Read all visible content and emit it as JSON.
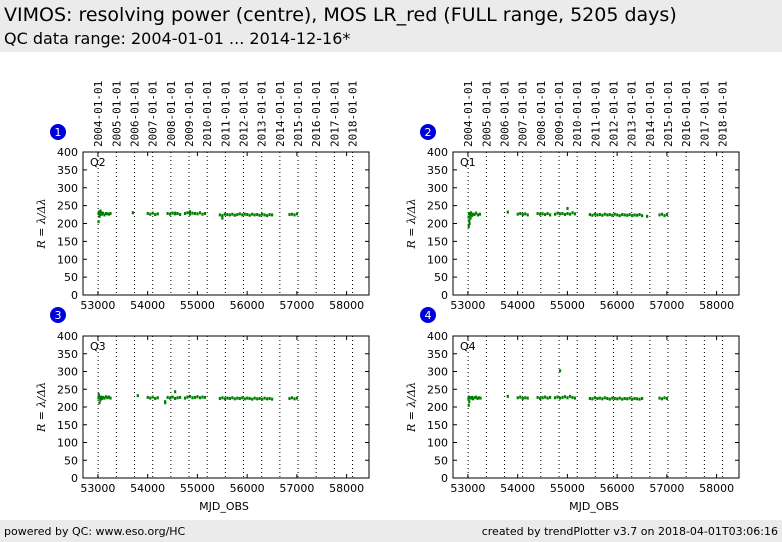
{
  "header": {
    "title": "VIMOS: resolving power (centre), MOS LR_red (FULL range, 5205 days)",
    "subtitle": "QC data range: 2004-01-01 ... 2014-12-16*"
  },
  "footer": {
    "left": "powered by QC: www.eso.org/HC",
    "right": "created by trendPlotter v3.7 on 2018-04-01T03:06:16"
  },
  "colors": {
    "data": "#008000",
    "badge": "#0000dd",
    "header_bg": "#ebebeb"
  },
  "chart_data": [
    {
      "type": "scatter",
      "panel_number": "1",
      "label": "Q2",
      "ylabel": "R = λ/Δλ",
      "xlabel": "",
      "xlim": [
        52700,
        58450
      ],
      "ylim": [
        0,
        400
      ],
      "xticks": [
        53000,
        54000,
        55000,
        56000,
        57000,
        58000
      ],
      "yticks": [
        0,
        50,
        100,
        150,
        200,
        250,
        300,
        350,
        400
      ],
      "date_ticks": [
        "2004-01-01",
        "2005-01-01",
        "2006-01-01",
        "2007-01-01",
        "2008-01-01",
        "2009-01-01",
        "2010-01-01",
        "2011-01-01",
        "2012-01-01",
        "2013-01-01",
        "2014-01-01",
        "2015-01-01",
        "2016-01-01",
        "2017-01-01",
        "2018-01-01"
      ],
      "date_mjd": [
        53005,
        53371,
        53736,
        54101,
        54466,
        54832,
        55197,
        55562,
        55927,
        56293,
        56658,
        57023,
        57388,
        57754,
        58119
      ],
      "series": [
        {
          "x": [
            53010,
            53020,
            53040,
            53060,
            53080,
            53100,
            53130,
            53160,
            53190,
            53220,
            53250,
            53030,
            53050,
            53010,
            53700,
            54000,
            54050,
            54100,
            54150,
            54200,
            54400,
            54450,
            54500,
            54550,
            54600,
            54650,
            54750,
            54800,
            54850,
            54900,
            54950,
            55000,
            55050,
            55100,
            55150,
            55450,
            55500,
            55550,
            55600,
            55650,
            55700,
            55750,
            55800,
            55850,
            55900,
            55950,
            56000,
            56050,
            56100,
            56150,
            56200,
            56250,
            56300,
            56350,
            56400,
            56450,
            56500,
            56850,
            56900,
            56950,
            57000,
            55500,
            54850,
            54550
          ],
          "y": [
            228,
            232,
            225,
            230,
            226,
            229,
            224,
            228,
            227,
            226,
            228,
            220,
            235,
            205,
            230,
            228,
            226,
            229,
            225,
            227,
            228,
            226,
            229,
            227,
            228,
            225,
            228,
            230,
            226,
            229,
            228,
            227,
            230,
            226,
            228,
            224,
            222,
            226,
            225,
            224,
            226,
            223,
            225,
            227,
            224,
            226,
            225,
            223,
            226,
            224,
            225,
            223,
            226,
            224,
            222,
            225,
            224,
            225,
            226,
            224,
            227,
            215,
            233,
            229
          ]
        }
      ]
    },
    {
      "type": "scatter",
      "panel_number": "2",
      "label": "Q1",
      "ylabel": "R = λ/Δλ",
      "xlabel": "",
      "xlim": [
        52700,
        58450
      ],
      "ylim": [
        0,
        400
      ],
      "xticks": [
        53000,
        54000,
        55000,
        56000,
        57000,
        58000
      ],
      "yticks": [
        0,
        50,
        100,
        150,
        200,
        250,
        300,
        350,
        400
      ],
      "date_ticks": [
        "2004-01-01",
        "2005-01-01",
        "2006-01-01",
        "2007-01-01",
        "2008-01-01",
        "2009-01-01",
        "2010-01-01",
        "2011-01-01",
        "2012-01-01",
        "2013-01-01",
        "2014-01-01",
        "2015-01-01",
        "2016-01-01",
        "2017-01-01",
        "2018-01-01"
      ],
      "date_mjd": [
        53005,
        53371,
        53736,
        54101,
        54466,
        54832,
        55197,
        55562,
        55927,
        56293,
        56658,
        57023,
        57388,
        57754,
        58119
      ],
      "series": [
        {
          "x": [
            53010,
            53020,
            53040,
            53060,
            53080,
            53100,
            53130,
            53160,
            53200,
            53240,
            53030,
            53050,
            53015,
            53025,
            53800,
            54000,
            54050,
            54100,
            54150,
            54200,
            54400,
            54450,
            54500,
            54550,
            54600,
            54650,
            54750,
            54800,
            54850,
            54900,
            54950,
            55000,
            55050,
            55100,
            55150,
            55450,
            55500,
            55550,
            55600,
            55650,
            55700,
            55750,
            55800,
            55850,
            55900,
            55950,
            56000,
            56050,
            56100,
            56150,
            56200,
            56250,
            56300,
            56350,
            56400,
            56450,
            56500,
            56600,
            56850,
            56900,
            56950,
            57000,
            55000
          ],
          "y": [
            218,
            228,
            224,
            230,
            222,
            226,
            225,
            229,
            224,
            226,
            200,
            215,
            192,
            208,
            232,
            226,
            228,
            225,
            227,
            224,
            228,
            226,
            227,
            225,
            228,
            224,
            226,
            229,
            227,
            228,
            225,
            228,
            226,
            230,
            227,
            225,
            223,
            226,
            224,
            225,
            223,
            226,
            224,
            225,
            223,
            226,
            224,
            222,
            225,
            224,
            223,
            225,
            222,
            224,
            223,
            225,
            222,
            220,
            224,
            226,
            222,
            225,
            242
          ]
        }
      ]
    },
    {
      "type": "scatter",
      "panel_number": "3",
      "label": "Q3",
      "ylabel": "R = λ/Δλ",
      "xlabel": "MJD_OBS",
      "xlim": [
        52700,
        58450
      ],
      "ylim": [
        0,
        400
      ],
      "xticks": [
        53000,
        54000,
        55000,
        56000,
        57000,
        58000
      ],
      "yticks": [
        0,
        50,
        100,
        150,
        200,
        250,
        300,
        350,
        400
      ],
      "date_ticks": [],
      "date_mjd": [
        53005,
        53371,
        53736,
        54101,
        54466,
        54832,
        55197,
        55562,
        55927,
        56293,
        56658,
        57023,
        57388,
        57754,
        58119
      ],
      "series": [
        {
          "x": [
            53010,
            53020,
            53040,
            53060,
            53080,
            53100,
            53130,
            53160,
            53190,
            53220,
            53250,
            53030,
            53050,
            53015,
            53800,
            54000,
            54050,
            54100,
            54150,
            54200,
            54350,
            54400,
            54450,
            54500,
            54550,
            54600,
            54650,
            54750,
            54800,
            54850,
            54900,
            54950,
            55000,
            55050,
            55100,
            55150,
            55450,
            55500,
            55550,
            55600,
            55650,
            55700,
            55750,
            55800,
            55850,
            55900,
            55950,
            56000,
            56050,
            56100,
            56150,
            56200,
            56250,
            56300,
            56350,
            56400,
            56450,
            56500,
            56850,
            56900,
            56950,
            57000,
            54550,
            54350
          ],
          "y": [
            225,
            230,
            226,
            228,
            224,
            227,
            225,
            229,
            226,
            228,
            225,
            212,
            220,
            235,
            232,
            227,
            225,
            228,
            224,
            226,
            215,
            227,
            225,
            228,
            224,
            226,
            227,
            225,
            228,
            230,
            226,
            227,
            229,
            226,
            228,
            227,
            224,
            226,
            223,
            225,
            224,
            226,
            223,
            225,
            224,
            226,
            223,
            225,
            224,
            222,
            225,
            223,
            224,
            222,
            225,
            223,
            224,
            222,
            224,
            226,
            223,
            225,
            243,
            212
          ]
        }
      ]
    },
    {
      "type": "scatter",
      "panel_number": "4",
      "label": "Q4",
      "ylabel": "R = λ/Δλ",
      "xlabel": "MJD_OBS",
      "xlim": [
        52700,
        58450
      ],
      "ylim": [
        0,
        400
      ],
      "xticks": [
        53000,
        54000,
        55000,
        56000,
        57000,
        58000
      ],
      "yticks": [
        0,
        50,
        100,
        150,
        200,
        250,
        300,
        350,
        400
      ],
      "date_ticks": [],
      "date_mjd": [
        53005,
        53371,
        53736,
        54101,
        54466,
        54832,
        55197,
        55562,
        55927,
        56293,
        56658,
        57023,
        57388,
        57754,
        58119
      ],
      "series": [
        {
          "x": [
            53010,
            53020,
            53040,
            53060,
            53080,
            53100,
            53130,
            53160,
            53190,
            53220,
            53250,
            53015,
            53025,
            53800,
            54000,
            54050,
            54100,
            54150,
            54200,
            54400,
            54450,
            54500,
            54550,
            54600,
            54650,
            54750,
            54800,
            54850,
            54900,
            54950,
            55000,
            55050,
            55100,
            55150,
            55450,
            55500,
            55550,
            55600,
            55650,
            55700,
            55750,
            55800,
            55850,
            55900,
            55950,
            56000,
            56050,
            56100,
            56150,
            56200,
            56250,
            56300,
            56350,
            56400,
            56450,
            56500,
            56850,
            56900,
            56950,
            57000,
            54850
          ],
          "y": [
            224,
            228,
            226,
            225,
            227,
            223,
            226,
            228,
            224,
            226,
            225,
            205,
            215,
            230,
            226,
            228,
            224,
            226,
            225,
            227,
            224,
            226,
            228,
            225,
            227,
            226,
            228,
            225,
            227,
            229,
            226,
            230,
            227,
            225,
            224,
            223,
            226,
            224,
            225,
            223,
            226,
            224,
            222,
            225,
            224,
            223,
            225,
            222,
            224,
            223,
            225,
            222,
            224,
            223,
            222,
            224,
            225,
            223,
            226,
            224,
            302
          ]
        }
      ]
    }
  ]
}
